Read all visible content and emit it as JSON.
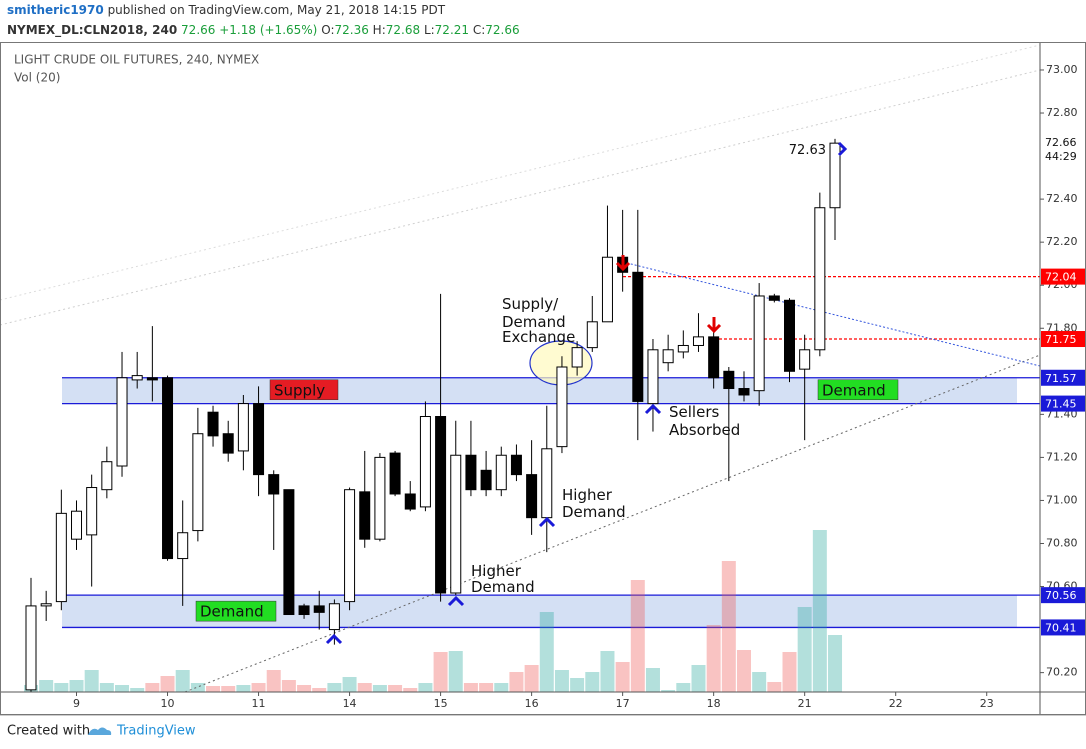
{
  "header": {
    "author": "smitheric1970",
    "published": "published on TradingView.com, May 21, 2018 14:15 PDT",
    "symbol": "NYMEX_DL:CLN2018, 240",
    "last": "72.66",
    "change": "+1.18 (+1.65%)",
    "ohlc": [
      {
        "label": "O:",
        "value": "72.36"
      },
      {
        "label": "H:",
        "value": "72.68"
      },
      {
        "label": "L:",
        "value": "72.21"
      },
      {
        "label": "C:",
        "value": "72.66"
      }
    ]
  },
  "footer": {
    "created": "Created with",
    "brand": "TradingView"
  },
  "chart_data": {
    "type": "candlestick",
    "title": "LIGHT CRUDE OIL FUTURES, 240, NYMEX",
    "subtitle": "Vol (20)",
    "categories": [
      null,
      null,
      null,
      "9",
      null,
      null,
      null,
      null,
      null,
      "10",
      null,
      null,
      null,
      null,
      null,
      "11",
      null,
      null,
      null,
      null,
      null,
      "14",
      null,
      null,
      null,
      null,
      null,
      "15",
      null,
      null,
      null,
      null,
      null,
      "16",
      null,
      null,
      null,
      null,
      null,
      "17",
      null,
      null,
      null,
      null,
      null,
      "18",
      null,
      null,
      null,
      null,
      null,
      "21",
      null,
      null,
      null,
      null,
      null,
      "22",
      null,
      null,
      null,
      null,
      null,
      "23",
      null,
      null,
      null
    ],
    "open": [
      70.12,
      70.51,
      70.53,
      70.82,
      70.84,
      71.05,
      71.16,
      71.56,
      71.57,
      71.57,
      70.73,
      70.86,
      71.41,
      71.31,
      71.23,
      71.45,
      71.12,
      71.05,
      70.51,
      70.51,
      70.4,
      70.53,
      71.04,
      70.82,
      71.22,
      71.03,
      70.97,
      71.39,
      70.57,
      71.21,
      71.14,
      71.05,
      71.21,
      71.12,
      70.92,
      71.25,
      71.62,
      71.71,
      71.83,
      72.13,
      72.06,
      71.45,
      71.64,
      71.69,
      71.72,
      71.76,
      71.6,
      71.52,
      71.51,
      71.95,
      71.93,
      71.61,
      71.7,
      72.36,
      null,
      null,
      null,
      null,
      null,
      null,
      null,
      null,
      null,
      null,
      null,
      null,
      null
    ],
    "high": [
      70.64,
      70.58,
      71.05,
      71.0,
      71.12,
      71.25,
      71.69,
      71.69,
      71.81,
      71.58,
      71.0,
      71.43,
      71.44,
      71.37,
      71.49,
      71.53,
      71.14,
      71.05,
      70.52,
      70.58,
      70.54,
      71.06,
      71.23,
      71.22,
      71.23,
      71.09,
      71.46,
      71.96,
      71.37,
      71.37,
      71.23,
      71.25,
      71.26,
      71.28,
      71.44,
      71.67,
      71.74,
      71.95,
      72.37,
      72.35,
      72.35,
      71.75,
      71.77,
      71.79,
      71.87,
      71.79,
      71.62,
      71.6,
      72.01,
      71.96,
      71.94,
      71.77,
      72.43,
      72.68,
      null,
      null,
      null,
      null,
      null,
      null,
      null,
      null,
      null,
      null,
      null,
      null,
      null
    ],
    "low": [
      70.11,
      70.44,
      70.49,
      70.77,
      70.6,
      71.01,
      71.11,
      71.52,
      71.46,
      70.72,
      70.51,
      70.81,
      71.25,
      71.18,
      71.14,
      71.02,
      70.77,
      70.47,
      70.45,
      70.4,
      70.33,
      70.49,
      70.78,
      70.81,
      71.02,
      70.95,
      70.95,
      70.53,
      70.56,
      71.02,
      71.02,
      71.02,
      71.09,
      70.84,
      70.76,
      71.22,
      71.58,
      71.69,
      71.83,
      71.97,
      71.28,
      71.32,
      71.6,
      71.66,
      71.69,
      71.52,
      71.09,
      71.46,
      71.44,
      71.92,
      71.55,
      71.28,
      71.67,
      72.21,
      null,
      null,
      null,
      null,
      null,
      null,
      null,
      null,
      null,
      null,
      null,
      null,
      null
    ],
    "close": [
      70.51,
      70.52,
      70.94,
      70.95,
      71.06,
      71.18,
      71.57,
      71.58,
      71.56,
      70.73,
      70.85,
      71.31,
      71.3,
      71.22,
      71.45,
      71.12,
      71.03,
      70.47,
      70.47,
      70.48,
      70.52,
      71.05,
      70.82,
      71.2,
      71.03,
      70.96,
      71.39,
      70.57,
      71.21,
      71.05,
      71.05,
      71.21,
      71.12,
      70.92,
      71.24,
      71.62,
      71.71,
      71.83,
      72.13,
      72.06,
      71.46,
      71.7,
      71.7,
      71.72,
      71.76,
      71.57,
      71.52,
      71.49,
      71.95,
      71.93,
      71.6,
      71.7,
      72.36,
      72.66,
      null,
      null,
      null,
      null,
      null,
      null,
      null,
      null,
      null,
      null,
      null,
      null,
      null
    ],
    "volume": [
      7,
      12,
      9,
      12,
      22,
      9,
      7,
      4,
      9,
      16,
      22,
      9,
      6,
      6,
      7,
      9,
      22,
      12,
      7,
      4,
      9,
      15,
      9,
      7,
      7,
      4,
      9,
      40,
      41,
      9,
      9,
      9,
      20,
      27,
      80,
      22,
      14,
      20,
      41,
      30,
      112,
      24,
      2,
      9,
      27,
      67,
      131,
      42,
      20,
      10,
      40,
      85,
      162,
      57,
      null,
      null,
      null,
      null,
      null,
      null,
      null,
      null,
      null,
      null,
      null,
      null,
      null
    ],
    "ylim": [
      70.11,
      73.13
    ],
    "yticks": [
      {
        "value": 73,
        "label": "73.00"
      },
      {
        "value": 72.8,
        "label": "72.80"
      },
      {
        "value": 72.4,
        "label": "72.40"
      },
      {
        "value": 72.2,
        "label": "72.20"
      },
      {
        "value": 72,
        "label": "72.00"
      },
      {
        "value": 71.8,
        "label": "71.80"
      },
      {
        "value": 71.4,
        "label": "71.40"
      },
      {
        "value": 71.2,
        "label": "71.20"
      },
      {
        "value": 71,
        "label": "71.00"
      },
      {
        "value": 70.8,
        "label": "70.80"
      },
      {
        "value": 70.6,
        "label": "70.60"
      },
      {
        "value": 70.2,
        "label": "70.20"
      }
    ],
    "up_color": "#ffffff",
    "down_color": "#000000",
    "volume_up_color": "#26a69a",
    "volume_down_color": "#ef5350",
    "zones": [
      {
        "low": 71.45,
        "high": 71.57,
        "labels": [
          {
            "text": "Supply",
            "color": "#e51c23"
          },
          {
            "text": "Demand",
            "color": "#22dd22"
          }
        ]
      },
      {
        "low": 70.41,
        "high": 70.56,
        "labels": [
          {
            "text": "Demand",
            "color": "#22dd22"
          }
        ]
      }
    ],
    "zone_color": "#1a1ad8",
    "levels": [
      72.04,
      71.75
    ],
    "level_color": "#ff0000",
    "last": 72.66,
    "countdown": "44:29",
    "price_note": 72.63,
    "annotations": [
      [
        "Supply/",
        "Demand",
        "Exchange"
      ],
      [
        "Sellers",
        "Absorbed"
      ],
      [
        "Higher",
        "Demand"
      ],
      [
        "Higher",
        "Demand"
      ]
    ]
  }
}
